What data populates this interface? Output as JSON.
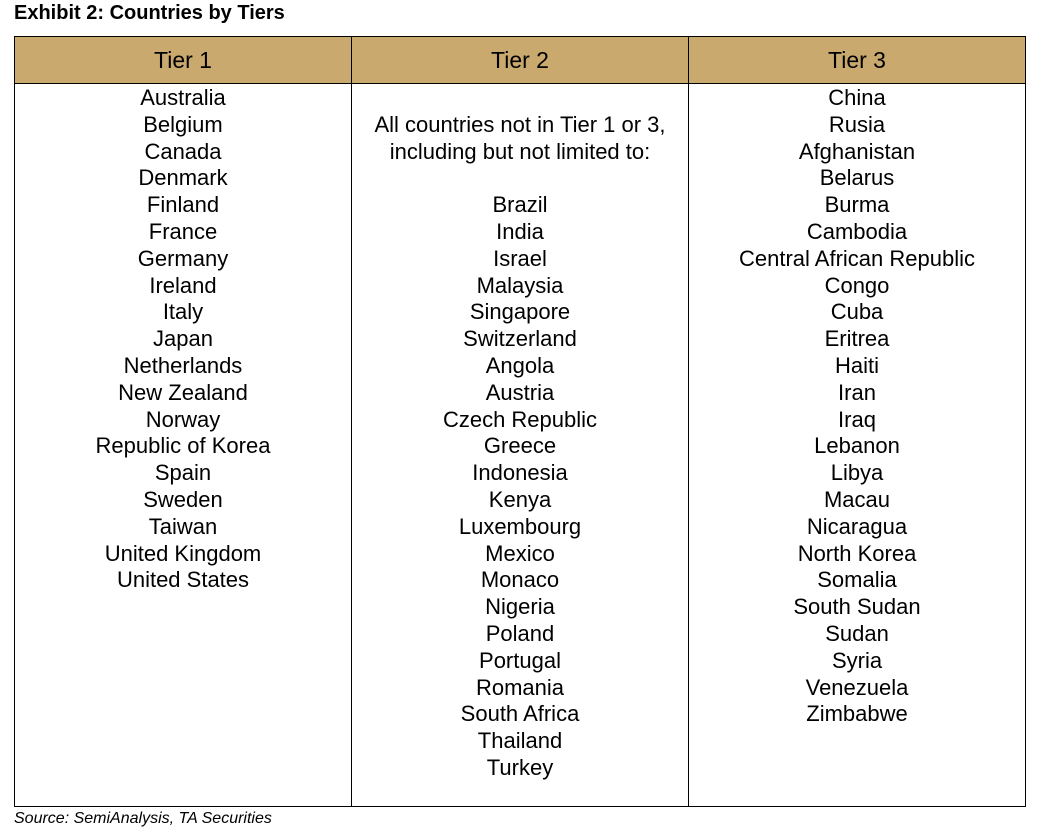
{
  "title": "Exhibit 2: Countries by Tiers",
  "table": {
    "headers": [
      "Tier 1",
      "Tier 2",
      "Tier 3"
    ],
    "tier1": [
      "Australia",
      "Belgium",
      "Canada",
      "Denmark",
      "Finland",
      "France",
      "Germany",
      "Ireland",
      "Italy",
      "Japan",
      "Netherlands",
      "New Zealand",
      "Norway",
      "Republic of Korea",
      "Spain",
      "Sweden",
      "Taiwan",
      "United Kingdom",
      "United States"
    ],
    "tier2_intro": "All countries not in Tier 1 or 3, including but not limited to:",
    "tier2": [
      "Brazil",
      "India",
      "Israel",
      "Malaysia",
      "Singapore",
      "Switzerland",
      "Angola",
      "Austria",
      "Czech Republic",
      "Greece",
      "Indonesia",
      "Kenya",
      "Luxembourg",
      "Mexico",
      "Monaco",
      "Nigeria",
      "Poland",
      "Portugal",
      "Romania",
      "South Africa",
      "Thailand",
      "Turkey"
    ],
    "tier3": [
      "China",
      "Rusia",
      "Afghanistan",
      "Belarus",
      "Burma",
      "Cambodia",
      "Central African Republic",
      "Congo",
      "Cuba",
      "Eritrea",
      "Haiti",
      "Iran",
      "Iraq",
      "Lebanon",
      "Libya",
      "Macau",
      "Nicaragua",
      "North Korea",
      "Somalia",
      "South Sudan",
      "Sudan",
      "Syria",
      "Venezuela",
      "Zimbabwe"
    ]
  },
  "source": "Source: SemiAnalysis, TA Securities"
}
